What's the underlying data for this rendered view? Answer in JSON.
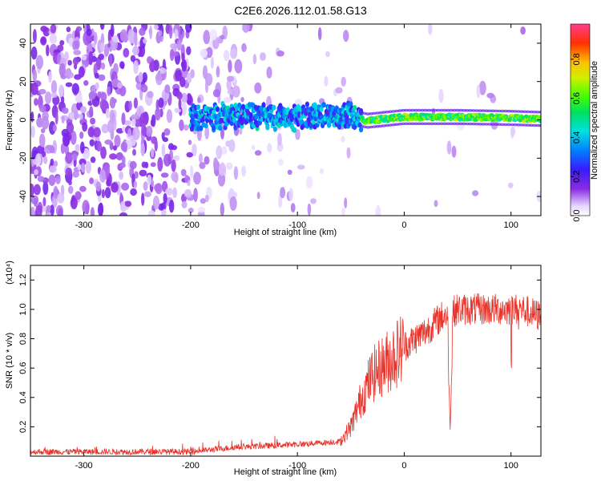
{
  "title": "C2E6.2026.112.01.58.G13",
  "chart_data": [
    {
      "type": "heatmap",
      "xlabel": "Height of straight line (km)",
      "ylabel": "Frequency (Hz)",
      "xlim": [
        -350,
        128
      ],
      "ylim": [
        -50,
        50
      ],
      "x_ticks": [
        -300,
        -200,
        -100,
        0,
        100
      ],
      "y_ticks": [
        -40,
        -20,
        0,
        20,
        40
      ],
      "colorbar": {
        "label": "Normalized spectral amplitude",
        "range": [
          0,
          0.98
        ],
        "ticks": [
          0.0,
          0.2,
          0.4,
          0.6,
          0.8
        ]
      },
      "signal_track": [
        {
          "height": -200,
          "freq": 1.0
        },
        {
          "height": -150,
          "freq": 2.5
        },
        {
          "height": -100,
          "freq": 1.0
        },
        {
          "height": -75,
          "freq": 3.0
        },
        {
          "height": -50,
          "freq": 2.0
        },
        {
          "height": -35,
          "freq": -0.5
        },
        {
          "height": 0,
          "freq": 1.5
        },
        {
          "height": 50,
          "freq": 1.5
        },
        {
          "height": 100,
          "freq": 1.0
        },
        {
          "height": 128,
          "freq": 0.5
        }
      ]
    },
    {
      "type": "line",
      "xlabel": "Height of straight line (km)",
      "ylabel": "SNR (10 * v/v)",
      "y_multiplier": "(x10⁴)",
      "xlim": [
        -350,
        128
      ],
      "ylim": [
        0,
        1.3
      ],
      "x_ticks": [
        -300,
        -200,
        -100,
        0,
        100
      ],
      "y_ticks": [
        0.2,
        0.4,
        0.6,
        0.8,
        1.0,
        1.2
      ],
      "color": "#e8332a",
      "series": [
        {
          "envelope": [
            {
              "x": -350,
              "y": 0.03
            },
            {
              "x": -200,
              "y": 0.03
            },
            {
              "x": -160,
              "y": 0.06
            },
            {
              "x": -100,
              "y": 0.08
            },
            {
              "x": -60,
              "y": 0.1
            },
            {
              "x": -50,
              "y": 0.2
            },
            {
              "x": -40,
              "y": 0.4
            },
            {
              "x": -30,
              "y": 0.55
            },
            {
              "x": -15,
              "y": 0.65
            },
            {
              "x": 0,
              "y": 0.75
            },
            {
              "x": 20,
              "y": 0.85
            },
            {
              "x": 35,
              "y": 0.95
            },
            {
              "x": 50,
              "y": 1.0
            },
            {
              "x": 80,
              "y": 1.0
            },
            {
              "x": 110,
              "y": 1.0
            },
            {
              "x": 128,
              "y": 0.95
            }
          ],
          "dip": {
            "x": 43,
            "y": 0.15
          }
        }
      ]
    }
  ]
}
